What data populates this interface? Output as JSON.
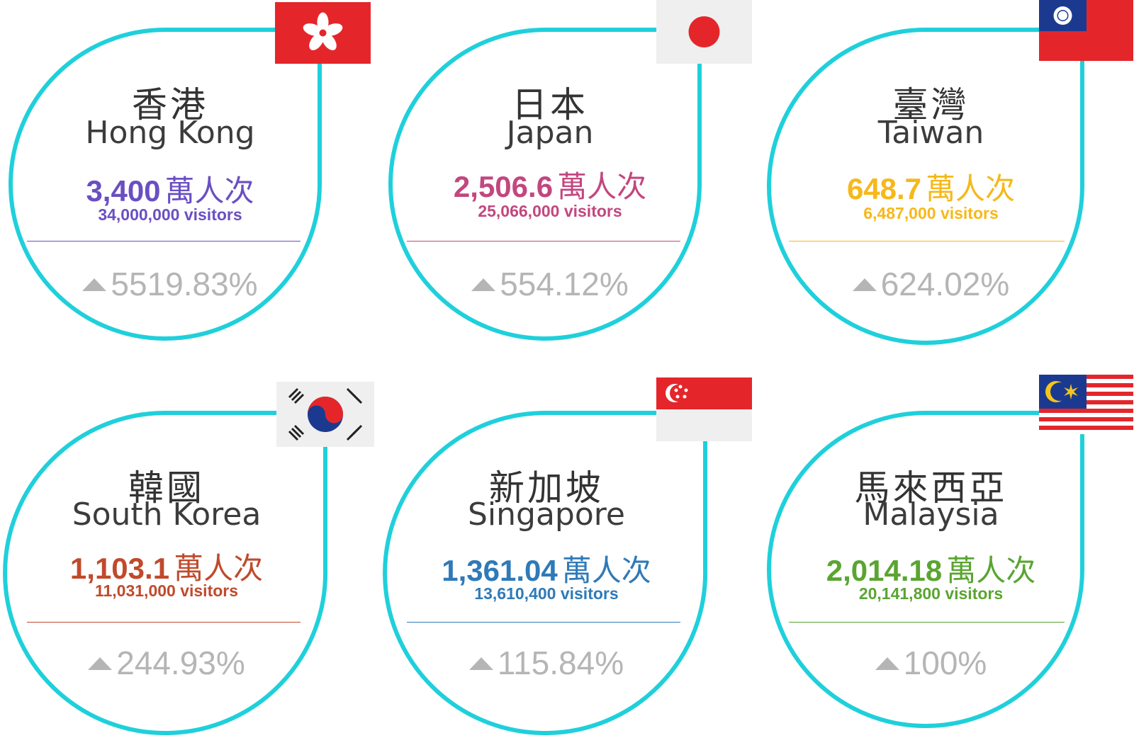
{
  "ring_color": "#1fd0db",
  "growth_color": "#b5b5b5",
  "cards": [
    {
      "cn": "香港",
      "en": "Hong Kong",
      "value": "3,400",
      "unit": "萬人次",
      "visitors": "34,000,000 visitors",
      "growth": "5519.83%",
      "color": "#6a4fc2",
      "flag": "hong-kong-flag"
    },
    {
      "cn": "日本",
      "en": "Japan",
      "value": "2,506.6",
      "unit": "萬人次",
      "visitors": "25,066,000 visitors",
      "growth": "554.12%",
      "color": "#c2477f",
      "flag": "japan-flag"
    },
    {
      "cn": "臺灣",
      "en": "Taiwan",
      "value": "648.7",
      "unit": "萬人次",
      "visitors": "6,487,000 visitors",
      "growth": "624.02%",
      "color": "#f6b81a",
      "flag": "taiwan-flag"
    },
    {
      "cn": "韓國",
      "en": "South Korea",
      "value": "1,103.1",
      "unit": "萬人次",
      "visitors": "11,031,000 visitors",
      "growth": "244.93%",
      "color": "#c04a2c",
      "flag": "south-korea-flag"
    },
    {
      "cn": "新加坡",
      "en": "Singapore",
      "value": "1,361.04",
      "unit": "萬人次",
      "visitors": "13,610,400 visitors",
      "growth": "115.84%",
      "color": "#2f7ab8",
      "flag": "singapore-flag"
    },
    {
      "cn": "馬來西亞",
      "en": "Malaysia",
      "value": "2,014.18",
      "unit": "萬人次",
      "visitors": "20,141,800 visitors",
      "growth": "100%",
      "color": "#5aa531",
      "flag": "malaysia-flag"
    }
  ]
}
